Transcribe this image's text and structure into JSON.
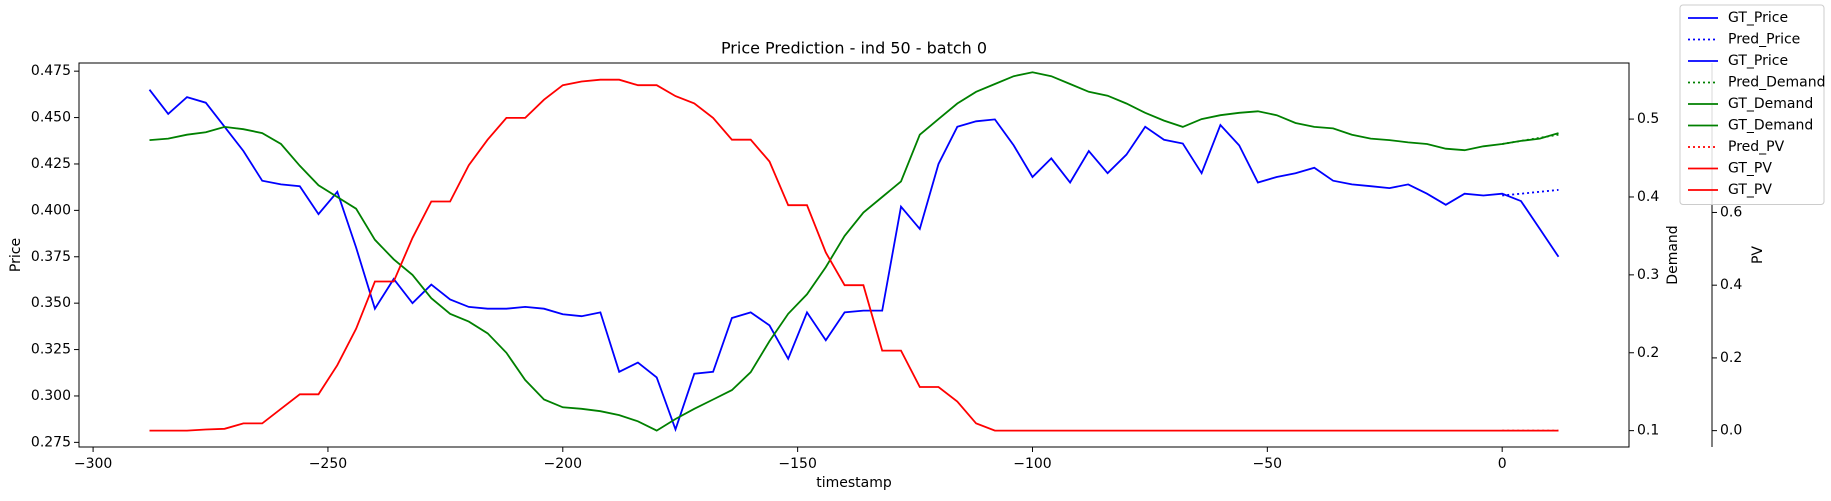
{
  "chart_data": {
    "type": "line",
    "title": "Price Prediction - ind 50 - batch 0",
    "xlabel": "timestamp",
    "ylabel": "Price",
    "y2label": "Demand",
    "y3label": "PV",
    "ylabel_color": "#0000ff",
    "y2label_color": "#008000",
    "y3label_color": "#ff0000",
    "xlim": [
      -303,
      27
    ],
    "ylim": [
      0.2725,
      0.4794
    ],
    "y2lim": [
      0.079,
      0.572
    ],
    "y3lim": [
      -0.045,
      1.011
    ],
    "xticks": [
      {
        "value": -300,
        "label": "−300"
      },
      {
        "value": -250,
        "label": "−250"
      },
      {
        "value": -200,
        "label": "−200"
      },
      {
        "value": -150,
        "label": "−150"
      },
      {
        "value": -100,
        "label": "−100"
      },
      {
        "value": -50,
        "label": "−50"
      },
      0
    ],
    "yticks": [
      0.275,
      {
        "value": 0.3,
        "label": "0.300"
      },
      0.325,
      {
        "value": 0.35,
        "label": "0.350"
      },
      0.375,
      {
        "value": 0.4,
        "label": "0.400"
      },
      0.425,
      {
        "value": 0.45,
        "label": "0.450"
      },
      0.475
    ],
    "y2ticks": [
      0.1,
      0.2,
      0.3,
      0.4,
      0.5
    ],
    "y3ticks": [
      {
        "value": 0,
        "label": "0.0"
      },
      0.2,
      0.4,
      0.6
    ],
    "series": [
      {
        "color": "#0000ff",
        "dash": false,
        "axis": "y",
        "x": [
          -288,
          -284,
          -280,
          -276,
          -272,
          -268,
          -264,
          -260,
          -256,
          -252,
          -248,
          -244,
          -240,
          -236,
          -232,
          -228,
          -224,
          -220,
          -216,
          -212,
          -208,
          -204,
          -200,
          -196,
          -192,
          -188,
          -184,
          -180,
          -176,
          -172,
          -168,
          -164,
          -160,
          -156,
          -152,
          -148,
          -144,
          -140,
          -136,
          -132,
          -128,
          -124,
          -120,
          -116,
          -112,
          -108,
          -104,
          -100,
          -96,
          -92,
          -88,
          -84,
          -80,
          -76,
          -72,
          -68,
          -64,
          -60,
          -56,
          -52,
          -48,
          -44,
          -40,
          -36,
          -32,
          -28,
          -24,
          -20,
          -16,
          -12,
          -8,
          -4,
          0,
          4,
          8,
          12
        ],
        "values": [
          0.465,
          0.452,
          0.461,
          0.458,
          0.445,
          0.432,
          0.416,
          0.414,
          0.413,
          0.398,
          0.41,
          0.38,
          0.347,
          0.363,
          0.35,
          0.36,
          0.352,
          0.348,
          0.347,
          0.347,
          0.348,
          0.347,
          0.344,
          0.343,
          0.345,
          0.313,
          0.318,
          0.31,
          0.282,
          0.312,
          0.313,
          0.342,
          0.345,
          0.338,
          0.32,
          0.345,
          0.33,
          0.345,
          0.346,
          0.346,
          0.402,
          0.39,
          0.425,
          0.445,
          0.448,
          0.449,
          0.435,
          0.418,
          0.428,
          0.415,
          0.432,
          0.42,
          0.43,
          0.445,
          0.438,
          0.436,
          0.42,
          0.446,
          0.435,
          0.415,
          0.418,
          0.42,
          0.423,
          0.416,
          0.414,
          0.413,
          0.412,
          0.414,
          0.409,
          0.403,
          0.409,
          0.408,
          0.409,
          0.405,
          0.39,
          0.375
        ]
      },
      {
        "color": "#0000ff",
        "dash": true,
        "axis": "y",
        "x": [
          0,
          4,
          8,
          12
        ],
        "values": [
          0.408,
          0.409,
          0.41,
          0.411
        ]
      },
      {
        "color": "#008000",
        "dash": false,
        "axis": "y2",
        "x": [
          -288,
          -284,
          -280,
          -276,
          -272,
          -268,
          -264,
          -260,
          -256,
          -252,
          -248,
          -244,
          -240,
          -236,
          -232,
          -228,
          -224,
          -220,
          -216,
          -212,
          -208,
          -204,
          -200,
          -196,
          -192,
          -188,
          -184,
          -180,
          -176,
          -172,
          -168,
          -164,
          -160,
          -156,
          -152,
          -148,
          -144,
          -140,
          -136,
          -132,
          -128,
          -124,
          -120,
          -116,
          -112,
          -108,
          -104,
          -100,
          -96,
          -92,
          -88,
          -84,
          -80,
          -76,
          -72,
          -68,
          -64,
          -60,
          -56,
          -52,
          -48,
          -44,
          -40,
          -36,
          -32,
          -28,
          -24,
          -20,
          -16,
          -12,
          -8,
          -4,
          0,
          4,
          8,
          12
        ],
        "values": [
          0.473,
          0.475,
          0.48,
          0.483,
          0.49,
          0.487,
          0.482,
          0.468,
          0.44,
          0.415,
          0.4,
          0.385,
          0.345,
          0.32,
          0.3,
          0.27,
          0.25,
          0.24,
          0.225,
          0.2,
          0.165,
          0.14,
          0.13,
          0.128,
          0.125,
          0.12,
          0.112,
          0.1,
          0.115,
          0.128,
          0.14,
          0.152,
          0.175,
          0.215,
          0.25,
          0.275,
          0.31,
          0.35,
          0.38,
          0.4,
          0.42,
          0.48,
          0.5,
          0.52,
          0.535,
          0.545,
          0.555,
          0.56,
          0.555,
          0.545,
          0.535,
          0.53,
          0.52,
          0.508,
          0.498,
          0.49,
          0.5,
          0.505,
          0.508,
          0.51,
          0.505,
          0.495,
          0.49,
          0.488,
          0.48,
          0.475,
          0.473,
          0.47,
          0.468,
          0.462,
          0.46,
          0.465,
          0.468,
          0.472,
          0.475,
          0.482
        ]
      },
      {
        "color": "#008000",
        "dash": true,
        "axis": "y2",
        "x": [
          0,
          4,
          8,
          12
        ],
        "values": [
          0.468,
          0.472,
          0.476,
          0.48
        ]
      },
      {
        "color": "#ff0000",
        "dash": false,
        "axis": "y3",
        "x": [
          -288,
          -284,
          -280,
          -276,
          -272,
          -268,
          -264,
          -260,
          -256,
          -252,
          -248,
          -244,
          -240,
          -236,
          -232,
          -228,
          -224,
          -220,
          -216,
          -212,
          -208,
          -204,
          -200,
          -196,
          -192,
          -188,
          -184,
          -180,
          -176,
          -172,
          -168,
          -164,
          -160,
          -156,
          -152,
          -148,
          -144,
          -140,
          -136,
          -132,
          -128,
          -124,
          -120,
          -116,
          -112,
          -108,
          -104,
          -100,
          -96,
          -92,
          -88,
          -84,
          -80,
          -76,
          -72,
          -68,
          -64,
          -60,
          -56,
          -52,
          -48,
          -44,
          -40,
          -36,
          -32,
          -28,
          -24,
          -20,
          -16,
          -12,
          -8,
          -4,
          0,
          4,
          8,
          12
        ],
        "values": [
          0,
          0,
          0,
          0.003,
          0.005,
          0.02,
          0.02,
          0.06,
          0.1,
          0.1,
          0.18,
          0.28,
          0.41,
          0.41,
          0.53,
          0.63,
          0.63,
          0.73,
          0.8,
          0.86,
          0.86,
          0.91,
          0.95,
          0.96,
          0.965,
          0.965,
          0.95,
          0.95,
          0.92,
          0.9,
          0.86,
          0.8,
          0.8,
          0.74,
          0.62,
          0.62,
          0.49,
          0.4,
          0.4,
          0.22,
          0.22,
          0.12,
          0.12,
          0.08,
          0.02,
          0,
          0,
          0,
          0,
          0,
          0,
          0,
          0,
          0,
          0,
          0,
          0,
          0,
          0,
          0,
          0,
          0,
          0,
          0,
          0,
          0,
          0,
          0,
          0,
          0,
          0,
          0,
          0,
          0,
          0,
          0
        ]
      },
      {
        "color": "#ff0000",
        "dash": true,
        "axis": "y3",
        "x": [
          0,
          4,
          8,
          12
        ],
        "values": [
          0,
          0,
          0,
          0
        ]
      }
    ],
    "legend_position": "upper right",
    "legend": [
      {
        "label": "GT_Price",
        "color": "#0000ff",
        "dash": false
      },
      {
        "label": "Pred_Price",
        "color": "#0000ff",
        "dash": true
      },
      {
        "label": "GT_Price",
        "color": "#0000ff",
        "dash": false
      },
      {
        "label": "Pred_Demand",
        "color": "#008000",
        "dash": true
      },
      {
        "label": "GT_Demand",
        "color": "#008000",
        "dash": false
      },
      {
        "label": "GT_Demand",
        "color": "#008000",
        "dash": false
      },
      {
        "label": "Pred_PV",
        "color": "#ff0000",
        "dash": true
      },
      {
        "label": "GT_PV",
        "color": "#ff0000",
        "dash": false
      },
      {
        "label": "GT_PV",
        "color": "#ff0000",
        "dash": false
      }
    ]
  }
}
